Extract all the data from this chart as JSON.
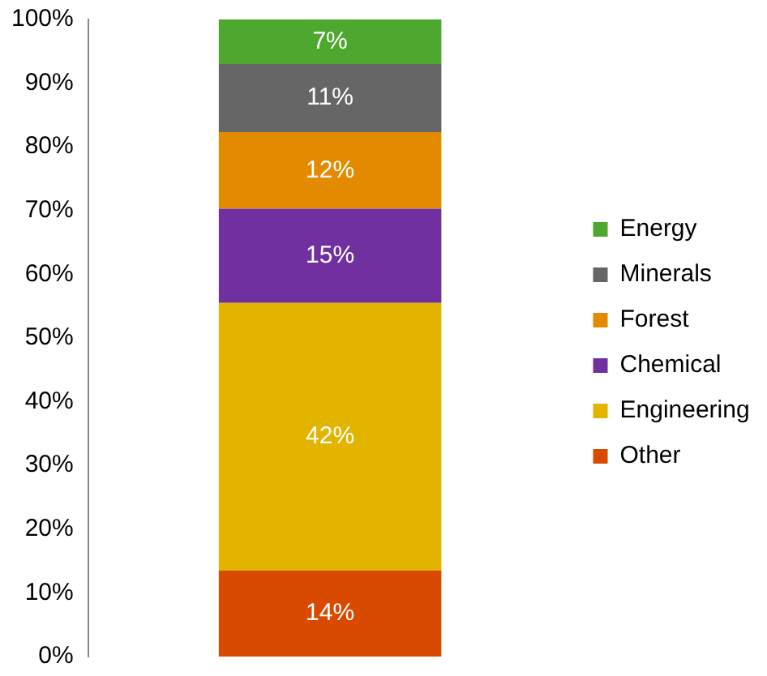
{
  "chart_data": {
    "type": "bar",
    "stacked": true,
    "categories": [
      null
    ],
    "series": [
      {
        "name": "Other",
        "color": "#d84a00",
        "values": [
          13.5
        ],
        "value_labels": [
          "14%"
        ]
      },
      {
        "name": "Engineering",
        "color": "#e2b400",
        "values": [
          42
        ],
        "value_labels": [
          "42%"
        ]
      },
      {
        "name": "Chemical",
        "color": "#7030a0",
        "values": [
          14.8
        ],
        "value_labels": [
          "15%"
        ]
      },
      {
        "name": "Forest",
        "color": "#e38a00",
        "values": [
          12
        ],
        "value_labels": [
          "12%"
        ]
      },
      {
        "name": "Minerals",
        "color": "#666666",
        "values": [
          10.7
        ],
        "value_labels": [
          "11%"
        ]
      },
      {
        "name": "Energy",
        "color": "#4ea72e",
        "values": [
          7
        ],
        "value_labels": [
          "7%"
        ]
      }
    ],
    "ylim": [
      0,
      100
    ],
    "yticks": [
      {
        "value": 0,
        "label": "0%"
      },
      {
        "value": 10,
        "label": "10%"
      },
      {
        "value": 20,
        "label": "20%"
      },
      {
        "value": 30,
        "label": "30%"
      },
      {
        "value": 40,
        "label": "40%"
      },
      {
        "value": 50,
        "label": "50%"
      },
      {
        "value": 60,
        "label": "60%"
      },
      {
        "value": 70,
        "label": "70%"
      },
      {
        "value": 80,
        "label": "80%"
      },
      {
        "value": 90,
        "label": "90%"
      },
      {
        "value": 100,
        "label": "100%"
      }
    ],
    "grid": false,
    "legend": "right"
  }
}
